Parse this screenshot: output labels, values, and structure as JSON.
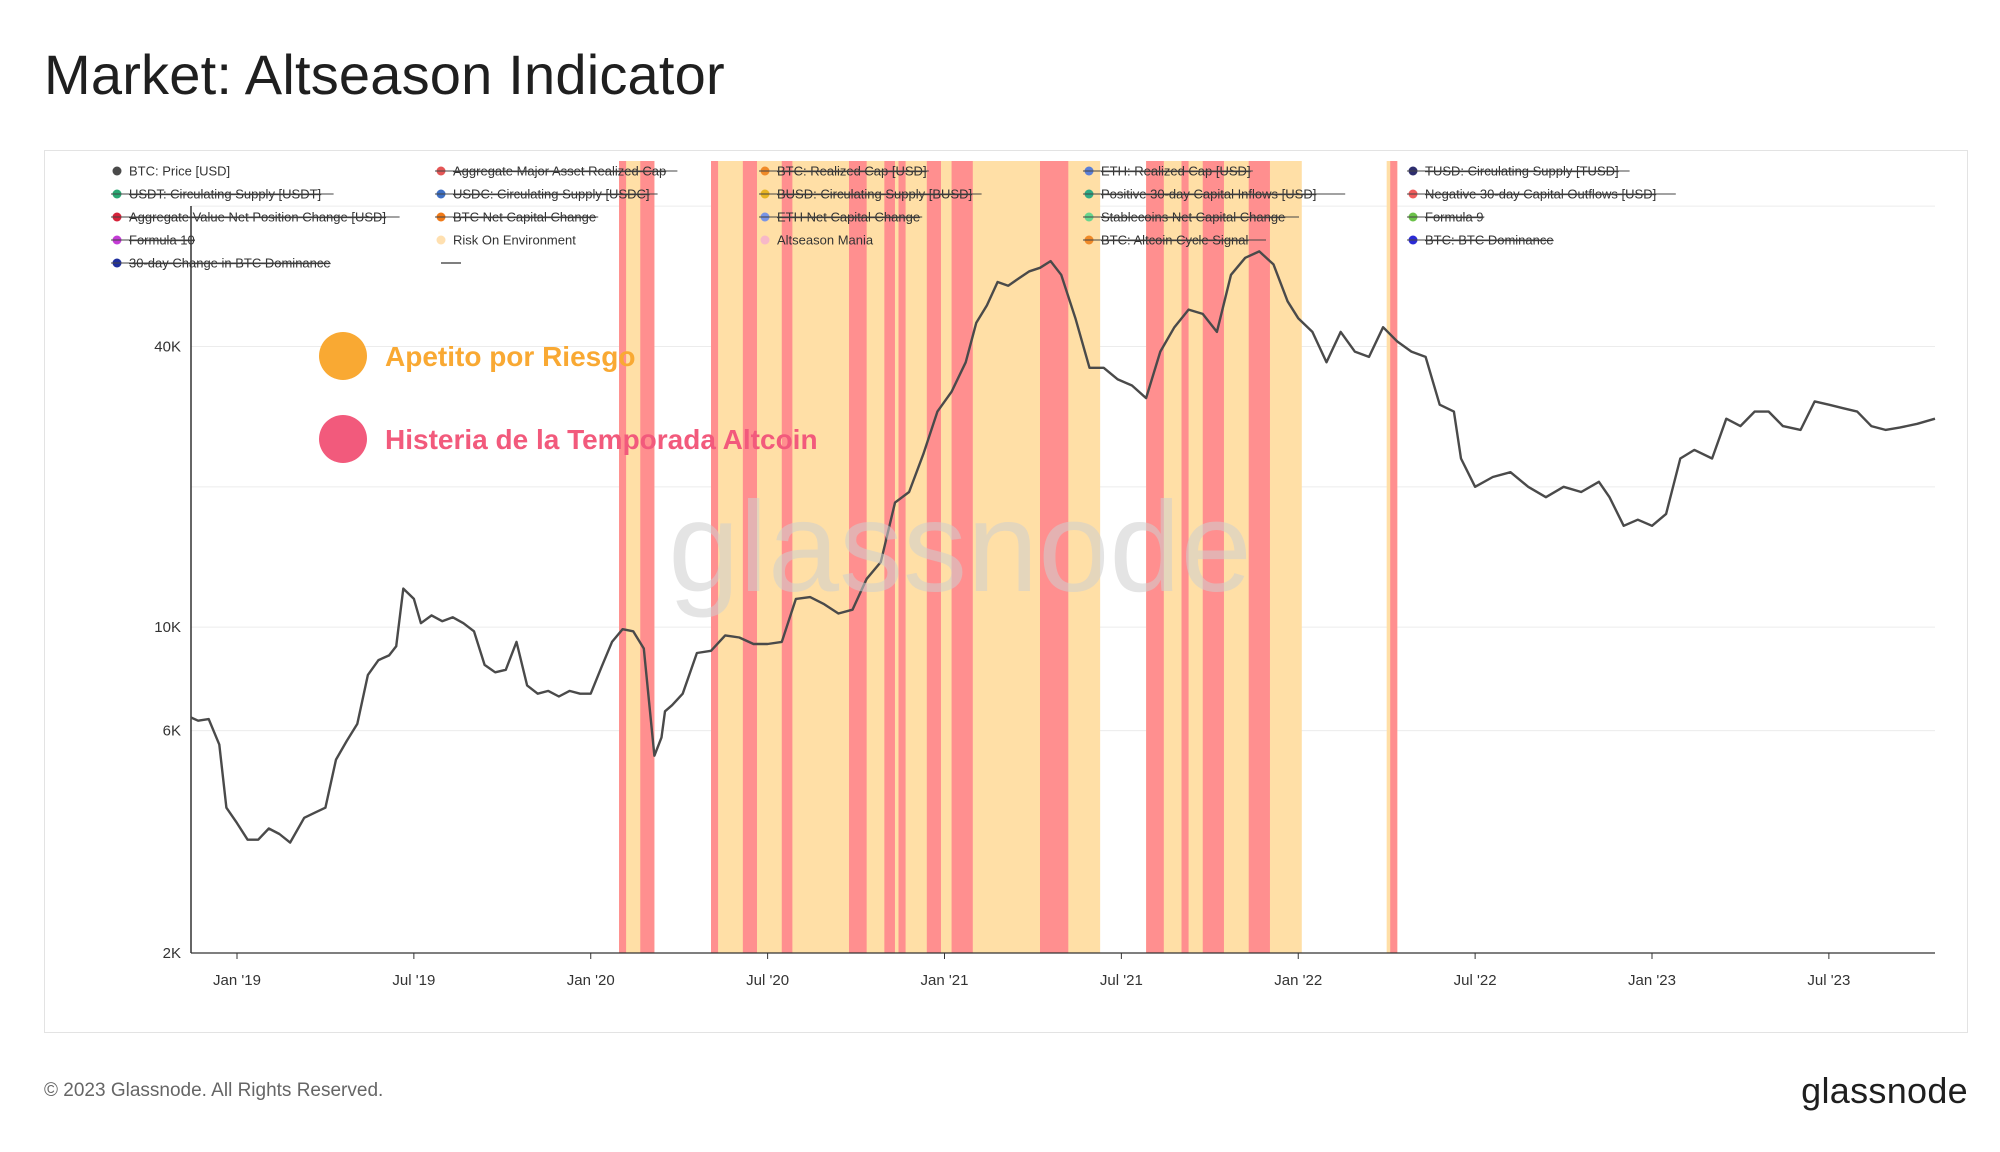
{
  "page": {
    "title": "Market: Altseason Indicator",
    "copyright": "© 2023 Glassnode. All Rights Reserved.",
    "logo_text": "glassnode",
    "watermark": "glassnode"
  },
  "colors": {
    "price_line": "#4a4a4a",
    "risk_on": "#ffdfa6",
    "altseason_mania": "#ff8f8f",
    "annotation_orange": "#f9a933",
    "annotation_pink": "#f25a7c",
    "grid": "#ececec"
  },
  "annotations": [
    {
      "label": "Apetito por Riesgo",
      "color": "#f9a933"
    },
    {
      "label": "Histeria de la Temporada Altcoin",
      "color": "#f25a7c"
    }
  ],
  "legend": [
    {
      "label": "BTC: Price [USD]",
      "color": "#4a4a4a",
      "strikethrough": false
    },
    {
      "label": "Aggregate Major Asset Realized Cap",
      "color": "#e45656",
      "strikethrough": true
    },
    {
      "label": "BTC: Realized Cap [USD]",
      "color": "#f08a28",
      "strikethrough": true
    },
    {
      "label": "ETH: Realized Cap [USD]",
      "color": "#5b7fd6",
      "strikethrough": true
    },
    {
      "label": "TUSD: Circulating Supply [TUSD]",
      "color": "#2d2d6e",
      "strikethrough": true
    },
    {
      "label": "USDT: Circulating Supply [USDT]",
      "color": "#2aa873",
      "strikethrough": true
    },
    {
      "label": "USDC: Circulating Supply [USDC]",
      "color": "#3d6fc4",
      "strikethrough": true
    },
    {
      "label": "BUSD: Circulating Supply [BUSD]",
      "color": "#e6b422",
      "strikethrough": true
    },
    {
      "label": "Positive 30-day Capital Inflows [USD]",
      "color": "#2faa86",
      "strikethrough": true
    },
    {
      "label": "Negative 30-day Capital Outflows [USD]",
      "color": "#f05c5c",
      "strikethrough": true
    },
    {
      "label": "Aggregate Value Net Position Change [USD]",
      "color": "#d6233a",
      "strikethrough": true
    },
    {
      "label": "BTC Net Capital Change",
      "color": "#f07a18",
      "strikethrough": true
    },
    {
      "label": "ETH Net Capital Change",
      "color": "#7a95e6",
      "strikethrough": true
    },
    {
      "label": "Stablecoins Net Capital Change",
      "color": "#69d68f",
      "strikethrough": true
    },
    {
      "label": "Formula 9",
      "color": "#6cc24a",
      "strikethrough": true
    },
    {
      "label": "Formula 10",
      "color": "#c43bd6",
      "strikethrough": true
    },
    {
      "label": "Risk On Environment",
      "color": "#ffe0b0",
      "strikethrough": false
    },
    {
      "label": "Altseason Mania",
      "color": "#f7b8c8",
      "strikethrough": false
    },
    {
      "label": "BTC: Altcoin Cycle Signal",
      "color": "#f08a28",
      "strikethrough": true
    },
    {
      "label": "BTC: BTC Dominance",
      "color": "#2b2bd6",
      "strikethrough": true
    },
    {
      "label": "30-day Change in BTC Dominance",
      "color": "#1f2f9e",
      "strikethrough": true
    },
    {
      "label": "",
      "color": "#555555",
      "strikethrough": false
    }
  ],
  "chart_data": {
    "type": "line",
    "title": "Market: Altseason Indicator",
    "xlabel": "",
    "ylabel": "",
    "yscale": "log",
    "ylim": [
      2000,
      100000
    ],
    "y_ticks": [
      {
        "value": 2000,
        "label": "2K"
      },
      {
        "value": 6000,
        "label": "6K"
      },
      {
        "value": 10000,
        "label": "10K"
      },
      {
        "value": 40000,
        "label": "40K"
      }
    ],
    "y_gridlines": [
      2000,
      6000,
      10000,
      20000,
      40000,
      80000
    ],
    "xlim": [
      2018.87,
      2023.8
    ],
    "x_ticks": [
      {
        "value": 2019.0,
        "label": "Jan '19"
      },
      {
        "value": 2019.5,
        "label": "Jul '19"
      },
      {
        "value": 2020.0,
        "label": "Jan '20"
      },
      {
        "value": 2020.5,
        "label": "Jul '20"
      },
      {
        "value": 2021.0,
        "label": "Jan '21"
      },
      {
        "value": 2021.5,
        "label": "Jul '21"
      },
      {
        "value": 2022.0,
        "label": "Jan '22"
      },
      {
        "value": 2022.5,
        "label": "Jul '22"
      },
      {
        "value": 2023.0,
        "label": "Jan '23"
      },
      {
        "value": 2023.5,
        "label": "Jul '23"
      }
    ],
    "series": [
      {
        "name": "BTC: Price [USD]",
        "x": [
          2018.87,
          2018.89,
          2018.92,
          2018.95,
          2018.97,
          2019.0,
          2019.03,
          2019.06,
          2019.09,
          2019.12,
          2019.15,
          2019.19,
          2019.22,
          2019.25,
          2019.28,
          2019.31,
          2019.34,
          2019.37,
          2019.4,
          2019.43,
          2019.45,
          2019.47,
          2019.5,
          2019.52,
          2019.55,
          2019.58,
          2019.61,
          2019.64,
          2019.67,
          2019.7,
          2019.73,
          2019.76,
          2019.79,
          2019.82,
          2019.85,
          2019.88,
          2019.91,
          2019.94,
          2019.97,
          2020.0,
          2020.03,
          2020.06,
          2020.09,
          2020.12,
          2020.15,
          2020.18,
          2020.2,
          2020.21,
          2020.23,
          2020.26,
          2020.3,
          2020.34,
          2020.38,
          2020.42,
          2020.46,
          2020.5,
          2020.54,
          2020.58,
          2020.62,
          2020.66,
          2020.7,
          2020.74,
          2020.78,
          2020.82,
          2020.86,
          2020.9,
          2020.94,
          2020.98,
          2021.02,
          2021.06,
          2021.09,
          2021.12,
          2021.15,
          2021.18,
          2021.21,
          2021.24,
          2021.27,
          2021.3,
          2021.33,
          2021.37,
          2021.41,
          2021.45,
          2021.49,
          2021.53,
          2021.57,
          2021.61,
          2021.65,
          2021.69,
          2021.73,
          2021.77,
          2021.81,
          2021.85,
          2021.89,
          2021.93,
          2021.97,
          2022.0,
          2022.04,
          2022.08,
          2022.12,
          2022.16,
          2022.2,
          2022.24,
          2022.28,
          2022.32,
          2022.36,
          2022.4,
          2022.44,
          2022.46,
          2022.5,
          2022.55,
          2022.6,
          2022.65,
          2022.7,
          2022.75,
          2022.8,
          2022.85,
          2022.88,
          2022.92,
          2022.96,
          2023.0,
          2023.04,
          2023.08,
          2023.12,
          2023.17,
          2023.21,
          2023.25,
          2023.29,
          2023.33,
          2023.37,
          2023.42,
          2023.46,
          2023.5,
          2023.54,
          2023.58,
          2023.62,
          2023.66,
          2023.7,
          2023.75,
          2023.8
        ],
        "y": [
          6400,
          6300,
          6350,
          5600,
          4100,
          3800,
          3500,
          3500,
          3700,
          3600,
          3450,
          3900,
          4000,
          4100,
          5200,
          5700,
          6200,
          7900,
          8500,
          8700,
          9100,
          12100,
          11500,
          10200,
          10600,
          10300,
          10500,
          10200,
          9800,
          8300,
          8000,
          8100,
          9300,
          7500,
          7200,
          7300,
          7100,
          7300,
          7200,
          7200,
          8200,
          9300,
          9900,
          9800,
          9000,
          5300,
          5800,
          6600,
          6800,
          7200,
          8800,
          8900,
          9600,
          9500,
          9200,
          9200,
          9300,
          11500,
          11600,
          11200,
          10700,
          10900,
          12700,
          13800,
          18500,
          19500,
          23500,
          29000,
          32000,
          37000,
          45000,
          49000,
          55000,
          54000,
          56000,
          58000,
          59000,
          61000,
          57000,
          46000,
          36000,
          36000,
          34000,
          33000,
          31000,
          39000,
          44000,
          48000,
          47000,
          43000,
          57000,
          62000,
          64000,
          60000,
          50000,
          46000,
          43000,
          37000,
          43000,
          39000,
          38000,
          44000,
          41000,
          39000,
          38000,
          30000,
          29000,
          23000,
          20000,
          21000,
          21500,
          20000,
          19000,
          20000,
          19500,
          20500,
          19000,
          16500,
          17000,
          16500,
          17500,
          23000,
          24000,
          23000,
          28000,
          27000,
          29000,
          29000,
          27000,
          26500,
          30500,
          30000,
          29500,
          29000,
          27000,
          26500,
          26800,
          27300,
          28000
        ]
      }
    ],
    "shaded_regions": {
      "altseason_mania": [
        [
          2020.08,
          2020.1
        ],
        [
          2020.14,
          2020.18
        ],
        [
          2020.34,
          2020.36
        ],
        [
          2020.43,
          2020.47
        ],
        [
          2020.54,
          2020.57
        ],
        [
          2020.73,
          2020.78
        ],
        [
          2020.83,
          2020.86
        ],
        [
          2020.87,
          2020.89
        ],
        [
          2020.95,
          2020.99
        ],
        [
          2021.02,
          2021.08
        ],
        [
          2021.27,
          2021.35
        ],
        [
          2021.57,
          2021.62
        ],
        [
          2021.67,
          2021.69
        ],
        [
          2021.73,
          2021.79
        ],
        [
          2021.86,
          2021.92
        ],
        [
          2022.26,
          2022.28
        ]
      ],
      "risk_on": [
        [
          2020.08,
          2020.18
        ],
        [
          2020.34,
          2021.44
        ],
        [
          2021.57,
          2022.01
        ],
        [
          2022.25,
          2022.28
        ]
      ]
    }
  }
}
